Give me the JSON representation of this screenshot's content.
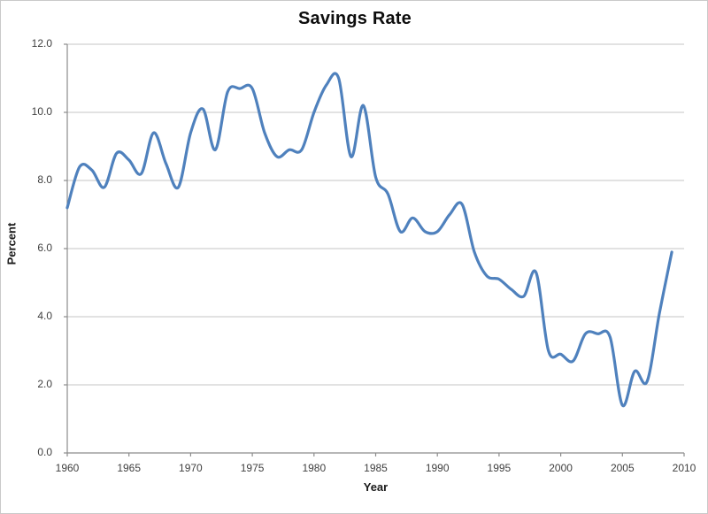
{
  "window": {
    "background": "#ffffff",
    "border_color": "#c9c9c9"
  },
  "chart_data": {
    "type": "line",
    "title": "Savings Rate",
    "xlabel": "Year",
    "ylabel": "Percent",
    "xlim": [
      1960,
      2010
    ],
    "ylim": [
      0.0,
      12.0
    ],
    "x_tick_step": 5,
    "y_tick_step": 2,
    "x_ticks": [
      "1960",
      "1965",
      "1970",
      "1975",
      "1980",
      "1985",
      "1990",
      "1995",
      "2000",
      "2005",
      "2010"
    ],
    "y_ticks": [
      "0.0",
      "2.0",
      "4.0",
      "6.0",
      "8.0",
      "10.0",
      "12.0"
    ],
    "grid": "horizontal-gridlines-on",
    "legend": "none",
    "line_color": "#4F81BD",
    "gridline_color": "#c6c6c6",
    "axis_color": "#8c8c8c",
    "tick_label_color": "#3f3f3f",
    "series": [
      {
        "name": "Savings Rate",
        "x": [
          1960,
          1961,
          1962,
          1963,
          1964,
          1965,
          1966,
          1967,
          1968,
          1969,
          1970,
          1971,
          1972,
          1973,
          1974,
          1975,
          1976,
          1977,
          1978,
          1979,
          1980,
          1981,
          1982,
          1983,
          1984,
          1985,
          1986,
          1987,
          1988,
          1989,
          1990,
          1991,
          1992,
          1993,
          1994,
          1995,
          1996,
          1997,
          1998,
          1999,
          2000,
          2001,
          2002,
          2003,
          2004,
          2005,
          2006,
          2007,
          2008,
          2009
        ],
        "values": [
          7.2,
          8.4,
          8.3,
          7.8,
          8.8,
          8.6,
          8.2,
          9.4,
          8.5,
          7.8,
          9.4,
          10.1,
          8.9,
          10.6,
          10.7,
          10.7,
          9.4,
          8.7,
          8.9,
          8.9,
          10.0,
          10.8,
          11.0,
          8.7,
          10.2,
          8.1,
          7.6,
          6.5,
          6.9,
          6.5,
          6.5,
          7.0,
          7.3,
          5.9,
          5.2,
          5.1,
          4.8,
          4.6,
          5.3,
          3.0,
          2.9,
          2.7,
          3.5,
          3.5,
          3.4,
          1.4,
          2.4,
          2.1,
          4.1,
          5.9
        ]
      }
    ]
  }
}
